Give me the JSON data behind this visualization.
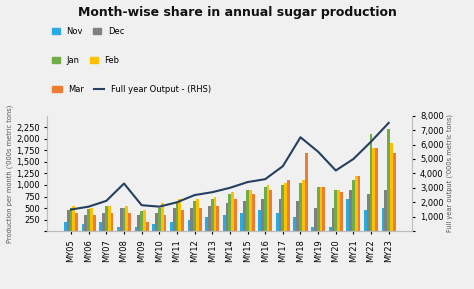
{
  "title": "Month-wise share in annual sugar production",
  "categories": [
    "MY05",
    "MY06",
    "MY07",
    "MY08",
    "MY09",
    "MY10",
    "MY11",
    "MY12",
    "MY13",
    "MY14",
    "MY15",
    "MY16",
    "MY17",
    "MY18",
    "MY19",
    "MY20",
    "MY21",
    "MY22",
    "MY23"
  ],
  "nov": [
    200,
    150,
    200,
    100,
    100,
    150,
    200,
    250,
    300,
    350,
    400,
    450,
    400,
    300,
    100,
    100,
    700,
    450,
    500
  ],
  "dec": [
    450,
    350,
    400,
    500,
    350,
    400,
    500,
    500,
    550,
    600,
    650,
    700,
    700,
    650,
    500,
    500,
    900,
    800,
    900
  ],
  "jan": [
    500,
    480,
    550,
    500,
    430,
    500,
    600,
    650,
    700,
    800,
    900,
    950,
    1000,
    1050,
    950,
    900,
    1100,
    2100,
    2200
  ],
  "feb": [
    550,
    500,
    550,
    550,
    450,
    600,
    700,
    700,
    750,
    850,
    900,
    1000,
    1050,
    1100,
    950,
    900,
    1200,
    1800,
    1900
  ],
  "mar": [
    400,
    350,
    400,
    400,
    200,
    350,
    450,
    500,
    550,
    700,
    800,
    900,
    1100,
    1700,
    950,
    850,
    1200,
    1800,
    1700
  ],
  "full_year": [
    1500,
    1700,
    2100,
    3300,
    1800,
    1700,
    2000,
    2500,
    2700,
    3000,
    3400,
    3600,
    4500,
    6500,
    5500,
    4200,
    5000,
    6200,
    7500
  ],
  "nov_color": "#29abe2",
  "dec_color": "#808080",
  "jan_color": "#70ad47",
  "feb_color": "#ffc000",
  "mar_color": "#ed7d31",
  "line_color": "#243f60",
  "ylabel_left": "Production per month ('000s metric tons)",
  "ylabel_right": "Full year output ('000s metric tons)",
  "ylim_left": [
    0,
    2500
  ],
  "ylim_right": [
    0,
    8000
  ],
  "yticks_left": [
    0,
    250,
    500,
    750,
    1000,
    1250,
    1500,
    1750,
    2000,
    2250
  ],
  "yticks_right": [
    0,
    1000,
    2000,
    3000,
    4000,
    5000,
    6000,
    7000,
    8000
  ],
  "bg_color": "#f0f0f0"
}
